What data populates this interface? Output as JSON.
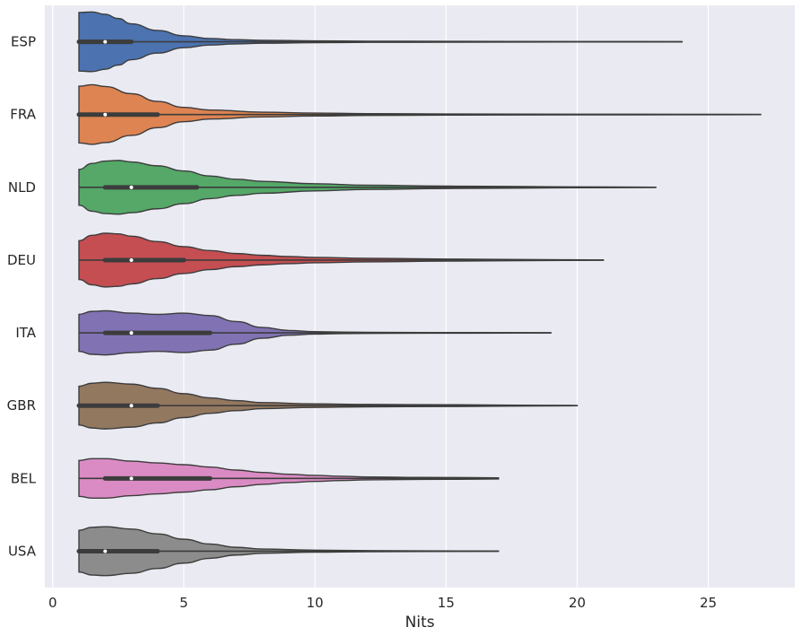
{
  "chart_data": {
    "type": "violin",
    "orientation": "horizontal",
    "title": "",
    "xlabel": "Nits",
    "ylabel": "",
    "xlim": [
      -0.3,
      28.3
    ],
    "xticks": [
      0,
      5,
      10,
      15,
      20,
      25
    ],
    "xtick_labels": [
      "0",
      "5",
      "10",
      "15",
      "20",
      "25"
    ],
    "grid": true,
    "background": "#eaeaf2",
    "grid_color": "#ffffff",
    "outline_color": "#3c3c3c",
    "categories": [
      "ESP",
      "FRA",
      "NLD",
      "DEU",
      "ITA",
      "GBR",
      "BEL",
      "USA"
    ],
    "series": [
      {
        "category": "ESP",
        "color": "#4c72b0",
        "min": 1,
        "q1": 1,
        "median": 2,
        "q3": 3,
        "max": 24,
        "density": [
          [
            1,
            0.98
          ],
          [
            1.5,
            1.0
          ],
          [
            2,
            0.92
          ],
          [
            2.5,
            0.78
          ],
          [
            3,
            0.6
          ],
          [
            4,
            0.38
          ],
          [
            5,
            0.2
          ],
          [
            6,
            0.11
          ],
          [
            7,
            0.07
          ],
          [
            8,
            0.05
          ],
          [
            10,
            0.03
          ],
          [
            12,
            0.02
          ],
          [
            15,
            0.014
          ],
          [
            20,
            0.008
          ],
          [
            24,
            0.004
          ]
        ]
      },
      {
        "category": "FRA",
        "color": "#dd8452",
        "min": 1,
        "q1": 1,
        "median": 2,
        "q3": 4,
        "max": 27,
        "density": [
          [
            1,
            0.95
          ],
          [
            1.5,
            1.0
          ],
          [
            2,
            0.94
          ],
          [
            3,
            0.7
          ],
          [
            4,
            0.44
          ],
          [
            5,
            0.24
          ],
          [
            6,
            0.15
          ],
          [
            8,
            0.08
          ],
          [
            10,
            0.05
          ],
          [
            12,
            0.03
          ],
          [
            15,
            0.02
          ],
          [
            20,
            0.012
          ],
          [
            24,
            0.008
          ],
          [
            27,
            0.004
          ]
        ]
      },
      {
        "category": "NLD",
        "color": "#55a868",
        "min": 1,
        "q1": 2,
        "median": 3,
        "q3": 5.5,
        "max": 23,
        "density": [
          [
            1,
            0.6
          ],
          [
            1.5,
            0.8
          ],
          [
            2,
            0.88
          ],
          [
            2.5,
            0.9
          ],
          [
            3,
            0.85
          ],
          [
            4,
            0.72
          ],
          [
            5,
            0.55
          ],
          [
            6,
            0.38
          ],
          [
            7,
            0.27
          ],
          [
            8,
            0.2
          ],
          [
            10,
            0.12
          ],
          [
            12,
            0.07
          ],
          [
            15,
            0.04
          ],
          [
            18,
            0.025
          ],
          [
            20,
            0.015
          ],
          [
            23,
            0.004
          ]
        ]
      },
      {
        "category": "DEU",
        "color": "#c44e52",
        "min": 1,
        "q1": 2,
        "median": 3,
        "q3": 5,
        "max": 21,
        "density": [
          [
            1,
            0.65
          ],
          [
            1.5,
            0.83
          ],
          [
            2,
            0.9
          ],
          [
            2.5,
            0.88
          ],
          [
            3,
            0.8
          ],
          [
            4,
            0.62
          ],
          [
            5,
            0.45
          ],
          [
            6,
            0.32
          ],
          [
            7,
            0.22
          ],
          [
            8,
            0.16
          ],
          [
            9,
            0.12
          ],
          [
            10,
            0.09
          ],
          [
            12,
            0.06
          ],
          [
            15,
            0.035
          ],
          [
            18,
            0.02
          ],
          [
            21,
            0.004
          ]
        ]
      },
      {
        "category": "ITA",
        "color": "#8172b3",
        "min": 1,
        "q1": 2,
        "median": 3,
        "q3": 6,
        "max": 19,
        "density": [
          [
            1,
            0.62
          ],
          [
            1.5,
            0.72
          ],
          [
            2,
            0.74
          ],
          [
            3,
            0.66
          ],
          [
            4,
            0.62
          ],
          [
            5,
            0.66
          ],
          [
            6,
            0.58
          ],
          [
            7,
            0.38
          ],
          [
            8,
            0.18
          ],
          [
            9,
            0.08
          ],
          [
            10,
            0.04
          ],
          [
            11,
            0.025
          ],
          [
            13,
            0.015
          ],
          [
            16,
            0.01
          ],
          [
            19,
            0.004
          ]
        ]
      },
      {
        "category": "GBR",
        "color": "#937860",
        "min": 1,
        "q1": 1,
        "median": 3,
        "q3": 4,
        "max": 20,
        "density": [
          [
            1,
            0.65
          ],
          [
            1.5,
            0.75
          ],
          [
            2,
            0.78
          ],
          [
            3,
            0.72
          ],
          [
            4,
            0.58
          ],
          [
            5,
            0.4
          ],
          [
            6,
            0.26
          ],
          [
            7,
            0.17
          ],
          [
            8,
            0.1
          ],
          [
            10,
            0.06
          ],
          [
            12,
            0.04
          ],
          [
            15,
            0.03
          ],
          [
            17,
            0.02
          ],
          [
            20,
            0.004
          ]
        ]
      },
      {
        "category": "BEL",
        "color": "#da8bc3",
        "min": 1,
        "q1": 2,
        "median": 3,
        "q3": 6,
        "max": 17,
        "density": [
          [
            1,
            0.6
          ],
          [
            1.5,
            0.66
          ],
          [
            2,
            0.66
          ],
          [
            3,
            0.58
          ],
          [
            4,
            0.52
          ],
          [
            5,
            0.46
          ],
          [
            6,
            0.38
          ],
          [
            7,
            0.28
          ],
          [
            8,
            0.2
          ],
          [
            9,
            0.14
          ],
          [
            10,
            0.1
          ],
          [
            11,
            0.07
          ],
          [
            12,
            0.05
          ],
          [
            14,
            0.035
          ],
          [
            16,
            0.025
          ],
          [
            17,
            0.02
          ]
        ]
      },
      {
        "category": "USA",
        "color": "#8c8c8c",
        "min": 1,
        "q1": 1,
        "median": 2,
        "q3": 4,
        "max": 17,
        "density": [
          [
            1,
            0.7
          ],
          [
            1.5,
            0.8
          ],
          [
            2,
            0.82
          ],
          [
            3,
            0.74
          ],
          [
            4,
            0.58
          ],
          [
            5,
            0.4
          ],
          [
            6,
            0.24
          ],
          [
            7,
            0.13
          ],
          [
            8,
            0.07
          ],
          [
            10,
            0.035
          ],
          [
            12,
            0.02
          ],
          [
            14,
            0.012
          ],
          [
            17,
            0.004
          ]
        ]
      }
    ]
  }
}
